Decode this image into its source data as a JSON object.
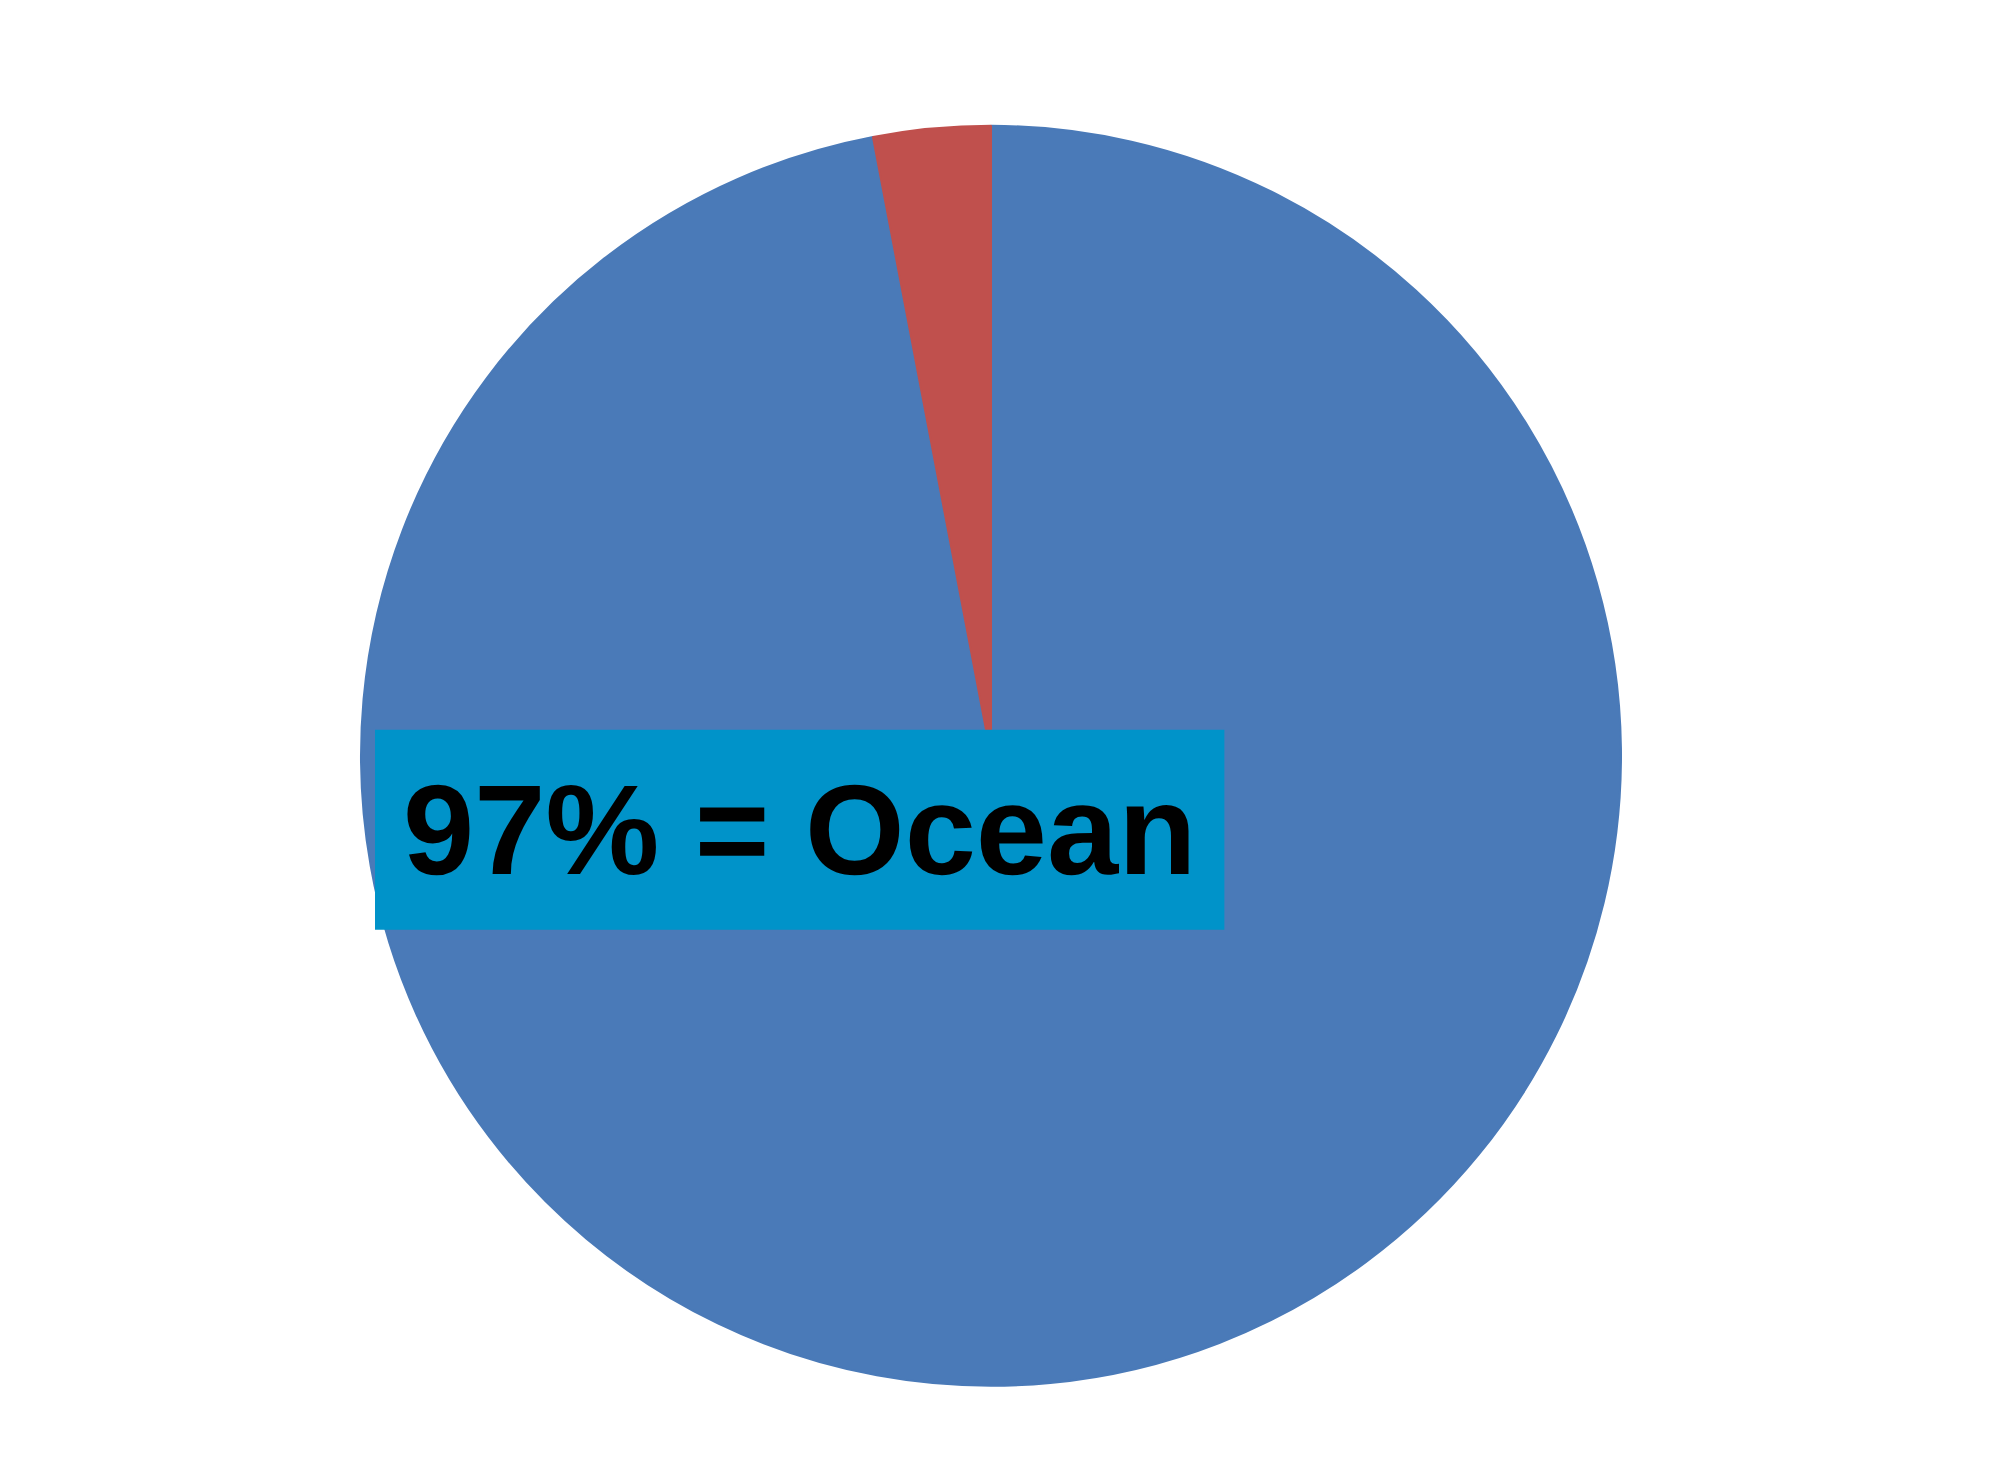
{
  "chart_data": {
    "type": "pie",
    "categories": [
      null,
      null
    ],
    "values": [
      97,
      3
    ],
    "colors": [
      "#4a7ab8",
      "#c0504d"
    ],
    "annotations": [
      "97% = Ocean"
    ]
  }
}
